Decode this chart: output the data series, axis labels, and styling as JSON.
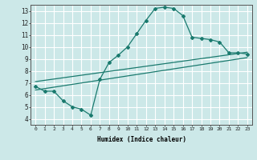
{
  "xlabel": "Humidex (Indice chaleur)",
  "ylabel": "",
  "bg_color": "#cce8e8",
  "grid_color": "#ffffff",
  "line_color": "#1a7a6e",
  "xlim": [
    -0.5,
    23.5
  ],
  "ylim": [
    3.5,
    13.5
  ],
  "xticks": [
    0,
    1,
    2,
    3,
    4,
    5,
    6,
    7,
    8,
    9,
    10,
    11,
    12,
    13,
    14,
    15,
    16,
    17,
    18,
    19,
    20,
    21,
    22,
    23
  ],
  "yticks": [
    4,
    5,
    6,
    7,
    8,
    9,
    10,
    11,
    12,
    13
  ],
  "main_line": {
    "x": [
      0,
      1,
      2,
      3,
      4,
      5,
      6,
      7,
      8,
      9,
      10,
      11,
      12,
      13,
      14,
      15,
      16,
      17,
      18,
      19,
      20,
      21,
      22,
      23
    ],
    "y": [
      6.7,
      6.3,
      6.3,
      5.5,
      5.0,
      4.8,
      4.3,
      7.3,
      8.7,
      9.3,
      10.0,
      11.1,
      12.2,
      13.2,
      13.3,
      13.2,
      12.6,
      10.8,
      10.7,
      10.6,
      10.4,
      9.5,
      9.5,
      9.4
    ]
  },
  "line2": {
    "x": [
      0,
      23
    ],
    "y": [
      7.1,
      9.55
    ]
  },
  "line3": {
    "x": [
      0,
      23
    ],
    "y": [
      6.4,
      9.1
    ]
  }
}
